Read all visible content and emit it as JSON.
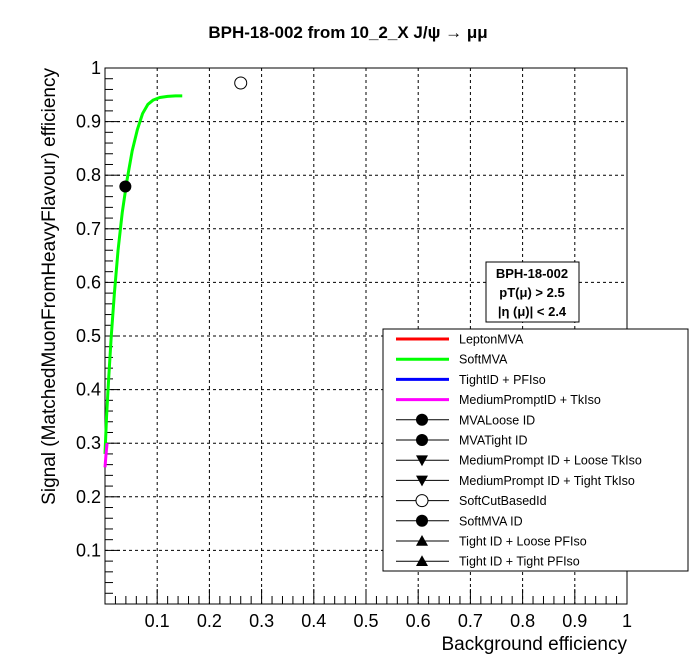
{
  "chart_data": {
    "type": "line",
    "title": "BPH-18-002 from 10_2_X J/ψ → μμ",
    "xlabel": "Background efficiency",
    "ylabel": "Signal (MatchedMuonFromHeavyFlavour) efficiency",
    "xlim": [
      0,
      1
    ],
    "ylim": [
      0,
      1
    ],
    "xticks": [
      "0.1",
      "0.2",
      "0.3",
      "0.4",
      "0.5",
      "0.6",
      "0.7",
      "0.8",
      "0.9",
      "1"
    ],
    "yticks": [
      "0.1",
      "0.2",
      "0.3",
      "0.4",
      "0.5",
      "0.6",
      "0.7",
      "0.8",
      "0.9",
      "1"
    ],
    "grid": true,
    "legend_placement": "bottom-right",
    "infobox": {
      "line1": "BPH-18-002",
      "line2": "pT(μ) > 2.5",
      "line3": "|η (μ)| < 2.4"
    },
    "series": [
      {
        "name": "LeptonMVA",
        "kind": "line",
        "color": "#ff0000",
        "x": [],
        "y": []
      },
      {
        "name": "SoftMVA",
        "kind": "line",
        "color": "#00ff00",
        "x": [
          0.0,
          0.003,
          0.007,
          0.012,
          0.018,
          0.025,
          0.033,
          0.042,
          0.052,
          0.062,
          0.072,
          0.082,
          0.092,
          0.105,
          0.12,
          0.135,
          0.148
        ],
        "y": [
          0.28,
          0.35,
          0.42,
          0.5,
          0.58,
          0.66,
          0.73,
          0.79,
          0.845,
          0.885,
          0.915,
          0.932,
          0.94,
          0.945,
          0.947,
          0.948,
          0.948
        ]
      },
      {
        "name": "TightID + PFIso",
        "kind": "line",
        "color": "#0000ff",
        "x": [],
        "y": []
      },
      {
        "name": "MediumPromptID + TkIso",
        "kind": "line",
        "color": "#ff00ff",
        "x": [
          0.0,
          0.002,
          0.004
        ],
        "y": [
          0.255,
          0.28,
          0.3
        ]
      },
      {
        "name": "MVALoose ID",
        "kind": "marker",
        "marker": "circle-filled",
        "x": [],
        "y": []
      },
      {
        "name": "MVATight ID",
        "kind": "marker",
        "marker": "circle-filled",
        "x": [],
        "y": []
      },
      {
        "name": "MediumPrompt ID + Loose TkIso",
        "kind": "marker",
        "marker": "triangle-down",
        "x": [],
        "y": []
      },
      {
        "name": "MediumPrompt ID + Tight TkIso",
        "kind": "marker",
        "marker": "triangle-down",
        "x": [],
        "y": []
      },
      {
        "name": "SoftCutBasedId",
        "kind": "marker",
        "marker": "circle-open",
        "x": [
          0.26
        ],
        "y": [
          0.972
        ]
      },
      {
        "name": "SoftMVA ID",
        "kind": "marker",
        "marker": "circle-filled",
        "x": [
          0.039
        ],
        "y": [
          0.779
        ]
      },
      {
        "name": "Tight ID + Loose PFIso",
        "kind": "marker",
        "marker": "triangle-up",
        "x": [],
        "y": []
      },
      {
        "name": "Tight ID + Tight PFIso",
        "kind": "marker",
        "marker": "triangle-up",
        "x": [],
        "y": []
      }
    ]
  }
}
